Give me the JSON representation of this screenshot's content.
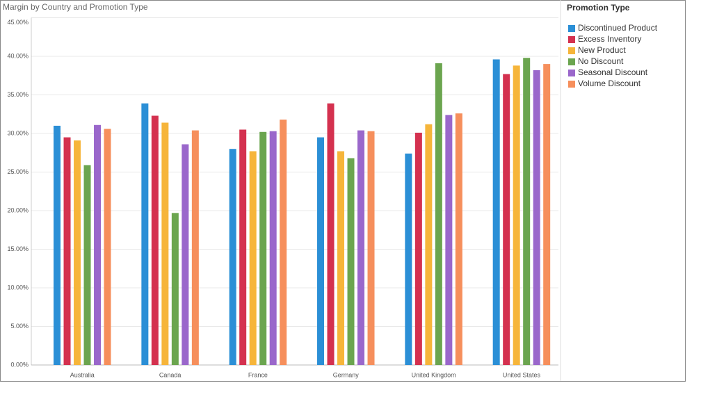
{
  "chart_data": {
    "type": "bar",
    "title": "Margin by Country and Promotion Type",
    "legend_title": "Promotion Type",
    "categories": [
      "Australia",
      "Canada",
      "France",
      "Germany",
      "United Kingdom",
      "United States"
    ],
    "series": [
      {
        "name": "Discontinued Product",
        "color": "#2b8fd6",
        "values": [
          31.0,
          33.9,
          28.0,
          29.5,
          27.4,
          39.6
        ]
      },
      {
        "name": "Excess Inventory",
        "color": "#d4314f",
        "values": [
          29.5,
          32.3,
          30.5,
          33.9,
          30.1,
          37.7
        ]
      },
      {
        "name": "New Product",
        "color": "#f6b53a",
        "values": [
          29.1,
          31.4,
          27.7,
          27.7,
          31.2,
          38.8
        ]
      },
      {
        "name": "No Discount",
        "color": "#6ba54f",
        "values": [
          25.9,
          19.7,
          30.2,
          26.8,
          39.1,
          39.8
        ]
      },
      {
        "name": "Seasonal Discount",
        "color": "#9a67cb",
        "values": [
          31.1,
          28.6,
          30.3,
          30.4,
          32.4,
          38.2
        ]
      },
      {
        "name": "Volume Discount",
        "color": "#f68f5c",
        "values": [
          30.6,
          30.4,
          31.8,
          30.3,
          32.6,
          39.0
        ]
      }
    ],
    "ylim": [
      0,
      45
    ],
    "yticks": [
      {
        "value": 0,
        "label": "0.00%"
      },
      {
        "value": 5,
        "label": "5.00%"
      },
      {
        "value": 10,
        "label": "10.00%"
      },
      {
        "value": 15,
        "label": "15.00%"
      },
      {
        "value": 20,
        "label": "20.00%"
      },
      {
        "value": 25,
        "label": "25.00%"
      },
      {
        "value": 30,
        "label": "30.00%"
      },
      {
        "value": 35,
        "label": "35.00%"
      },
      {
        "value": 40,
        "label": "40.00%"
      },
      {
        "value": 45,
        "label": "45.00%"
      }
    ],
    "grid": true,
    "legend": "right"
  }
}
